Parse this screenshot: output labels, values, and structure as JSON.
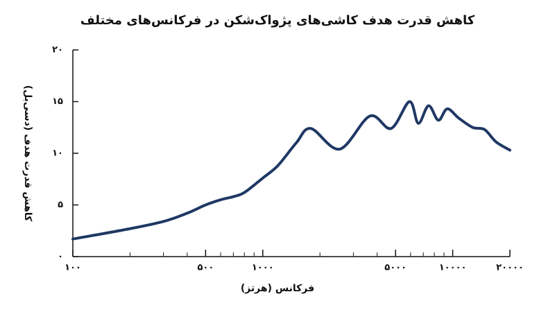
{
  "chart_data": {
    "type": "line",
    "title": "کاهش قدرت هدف کاشی‌های پژواک‌شکن در فرکانس‌های مختلف",
    "x_label": "فرکانس (هرتز)",
    "y_label": "کاهش قدرت هدف (دسی‌بل)",
    "log_x": true,
    "xlim": [
      100,
      20000
    ],
    "ylim": [
      0,
      20
    ],
    "xticks": [
      {
        "value": 100,
        "label": "۱۰۰"
      },
      {
        "value": 500,
        "label": "۵۰۰"
      },
      {
        "value": 1000,
        "label": "۱۰۰۰"
      },
      {
        "value": 5000,
        "label": "۵۰۰۰"
      },
      {
        "value": 10000,
        "label": "۱۰۰۰۰"
      },
      {
        "value": 20000,
        "label": "۲۰۰۰۰"
      }
    ],
    "xminor": [
      200,
      300,
      400,
      600,
      700,
      800,
      900,
      2000,
      3000,
      4000,
      6000,
      7000,
      8000,
      9000
    ],
    "yticks": [
      {
        "value": 0,
        "label": "۰"
      },
      {
        "value": 5,
        "label": "۵"
      },
      {
        "value": 10,
        "label": "۱۰"
      },
      {
        "value": 15,
        "label": "۱۵"
      },
      {
        "value": 20,
        "label": "۲۰"
      }
    ],
    "series": [
      {
        "color": "#1f3864",
        "x": [
          100,
          200,
          300,
          400,
          500,
          600,
          700,
          800,
          1000,
          1200,
          1500,
          1790,
          2540,
          3660,
          4740,
          5920,
          6590,
          7460,
          8400,
          9360,
          10760,
          12740,
          14700,
          16900,
          20000
        ],
        "values": [
          1.7,
          2.7,
          3.4,
          4.2,
          5.0,
          5.5,
          5.8,
          6.2,
          7.6,
          8.8,
          11,
          12.4,
          10.4,
          13.6,
          12.4,
          15.0,
          12.9,
          14.6,
          13.2,
          14.3,
          13.4,
          12.5,
          12.3,
          11.1,
          10.3
        ]
      }
    ]
  }
}
